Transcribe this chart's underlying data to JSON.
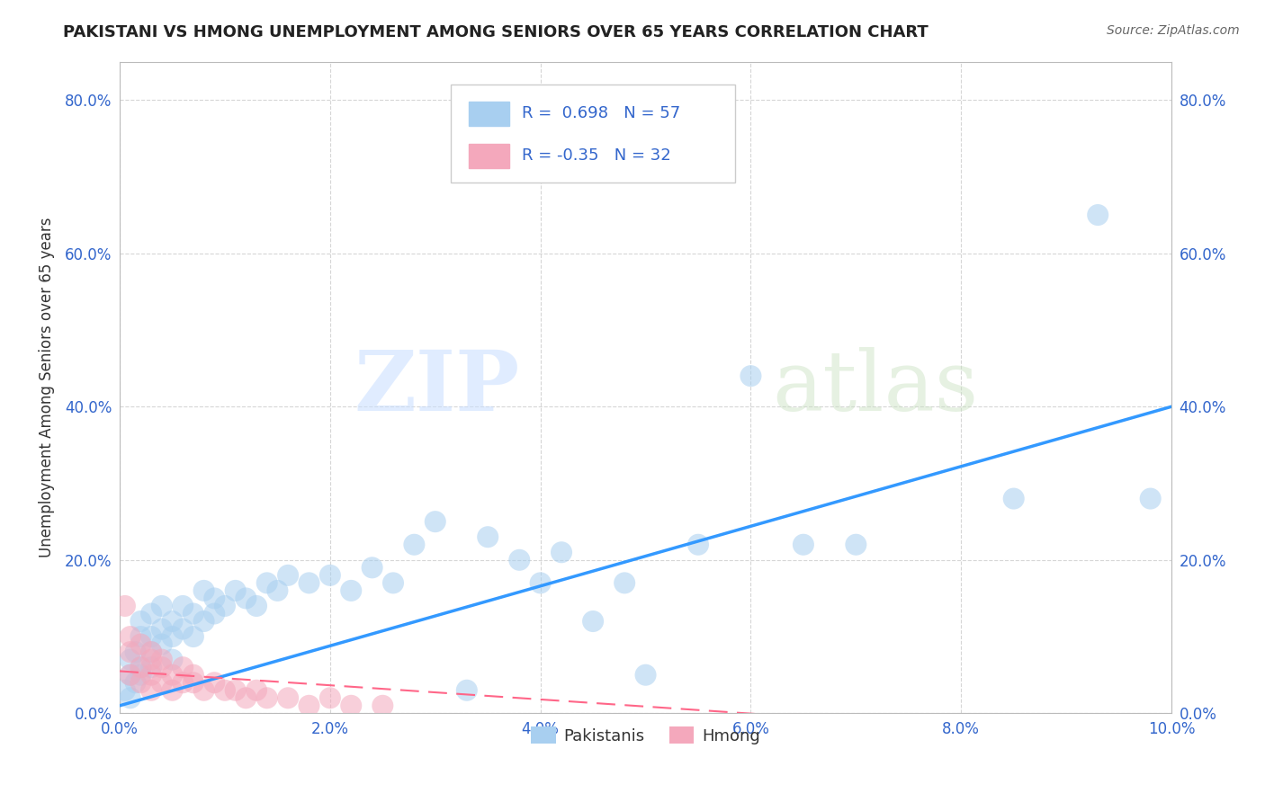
{
  "title": "PAKISTANI VS HMONG UNEMPLOYMENT AMONG SENIORS OVER 65 YEARS CORRELATION CHART",
  "source": "Source: ZipAtlas.com",
  "ylabel": "Unemployment Among Seniors over 65 years",
  "xlim": [
    0.0,
    0.1
  ],
  "ylim": [
    0.0,
    0.85
  ],
  "xticks": [
    0.0,
    0.02,
    0.04,
    0.06,
    0.08,
    0.1
  ],
  "yticks": [
    0.0,
    0.2,
    0.4,
    0.6,
    0.8
  ],
  "pakistani_R": 0.698,
  "pakistani_N": 57,
  "hmong_R": -0.35,
  "hmong_N": 32,
  "pakistani_color": "#A8CFF0",
  "hmong_color": "#F4A8BC",
  "pakistani_line_color": "#3399FF",
  "hmong_line_color": "#FF6688",
  "pakistani_x": [
    0.0005,
    0.001,
    0.001,
    0.001,
    0.0015,
    0.0015,
    0.002,
    0.002,
    0.002,
    0.002,
    0.003,
    0.003,
    0.003,
    0.003,
    0.004,
    0.004,
    0.004,
    0.005,
    0.005,
    0.005,
    0.006,
    0.006,
    0.007,
    0.007,
    0.008,
    0.008,
    0.009,
    0.009,
    0.01,
    0.011,
    0.012,
    0.013,
    0.014,
    0.015,
    0.016,
    0.018,
    0.02,
    0.022,
    0.024,
    0.026,
    0.028,
    0.03,
    0.033,
    0.035,
    0.038,
    0.04,
    0.042,
    0.045,
    0.048,
    0.05,
    0.055,
    0.06,
    0.065,
    0.07,
    0.085,
    0.093,
    0.098
  ],
  "pakistani_y": [
    0.03,
    0.02,
    0.05,
    0.07,
    0.04,
    0.08,
    0.05,
    0.06,
    0.1,
    0.12,
    0.08,
    0.1,
    0.13,
    0.06,
    0.09,
    0.11,
    0.14,
    0.1,
    0.12,
    0.07,
    0.11,
    0.14,
    0.1,
    0.13,
    0.12,
    0.16,
    0.13,
    0.15,
    0.14,
    0.16,
    0.15,
    0.14,
    0.17,
    0.16,
    0.18,
    0.17,
    0.18,
    0.16,
    0.19,
    0.17,
    0.22,
    0.25,
    0.03,
    0.23,
    0.2,
    0.17,
    0.21,
    0.12,
    0.17,
    0.05,
    0.22,
    0.44,
    0.22,
    0.22,
    0.28,
    0.65,
    0.28
  ],
  "hmong_x": [
    0.0005,
    0.001,
    0.001,
    0.001,
    0.002,
    0.002,
    0.002,
    0.003,
    0.003,
    0.003,
    0.003,
    0.004,
    0.004,
    0.004,
    0.005,
    0.005,
    0.006,
    0.006,
    0.007,
    0.007,
    0.008,
    0.009,
    0.01,
    0.011,
    0.012,
    0.013,
    0.014,
    0.016,
    0.018,
    0.02,
    0.022,
    0.025
  ],
  "hmong_y": [
    0.14,
    0.05,
    0.08,
    0.1,
    0.06,
    0.09,
    0.04,
    0.07,
    0.05,
    0.08,
    0.03,
    0.06,
    0.04,
    0.07,
    0.05,
    0.03,
    0.04,
    0.06,
    0.04,
    0.05,
    0.03,
    0.04,
    0.03,
    0.03,
    0.02,
    0.03,
    0.02,
    0.02,
    0.01,
    0.02,
    0.01,
    0.01
  ],
  "watermark_zip": "ZIP",
  "watermark_atlas": "atlas",
  "background_color": "#FFFFFF",
  "grid_color": "#CCCCCC",
  "tick_color": "#3366CC",
  "title_color": "#222222",
  "source_color": "#666666",
  "legend_label_color": "#3366CC"
}
